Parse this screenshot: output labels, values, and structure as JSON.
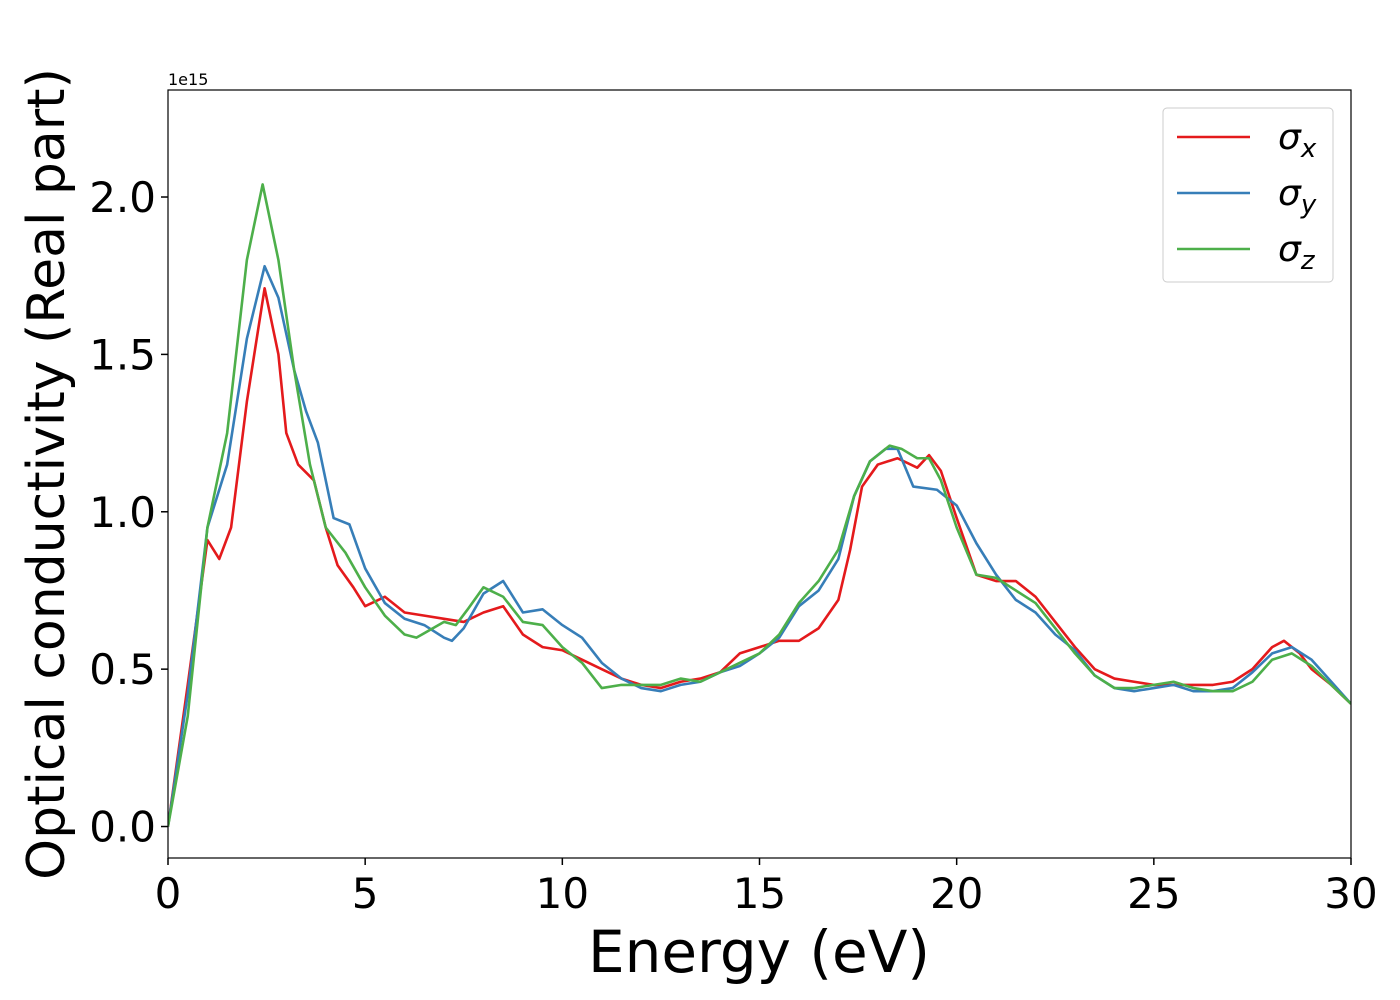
{
  "chart_data": {
    "type": "line",
    "xlabel": "Energy (eV)",
    "ylabel": "Optical conductivity (Real part)",
    "y_offset_text": "1e15",
    "xlim": [
      0,
      30
    ],
    "xticks": [
      0,
      5,
      10,
      15,
      20,
      25,
      30
    ],
    "ylim": [
      -0.1,
      2.34
    ],
    "yticks": [
      {
        "value": 0,
        "label": "0.0"
      },
      0.5,
      {
        "value": 1,
        "label": "1.0"
      },
      1.5,
      {
        "value": 2,
        "label": "2.0"
      }
    ],
    "grid": false,
    "legend": "upper right",
    "series": [
      {
        "name": "σx",
        "color": "#e41a1c",
        "x": [
          0,
          0.5,
          1.0,
          1.3,
          1.6,
          2.0,
          2.45,
          2.8,
          3.0,
          3.3,
          3.7,
          4.0,
          4.3,
          4.7,
          5.0,
          5.5,
          6.0,
          6.5,
          7.0,
          7.5,
          8.0,
          8.5,
          9.0,
          9.5,
          10,
          10.5,
          11,
          11.5,
          12,
          12.5,
          13,
          13.5,
          14,
          14.5,
          15,
          15.5,
          16,
          16.5,
          17,
          17.3,
          17.6,
          18,
          18.5,
          19,
          19.3,
          19.6,
          20,
          20.5,
          21,
          21.5,
          22,
          22.5,
          23,
          23.5,
          24,
          24.5,
          25,
          25.5,
          26,
          26.5,
          27,
          27.5,
          28,
          28.3,
          28.7,
          29,
          29.5,
          30
        ],
        "values": [
          0,
          0.45,
          0.91,
          0.85,
          0.95,
          1.35,
          1.71,
          1.5,
          1.25,
          1.15,
          1.1,
          0.95,
          0.83,
          0.76,
          0.7,
          0.73,
          0.68,
          0.67,
          0.66,
          0.65,
          0.68,
          0.7,
          0.61,
          0.57,
          0.56,
          0.53,
          0.5,
          0.47,
          0.45,
          0.44,
          0.46,
          0.47,
          0.49,
          0.55,
          0.57,
          0.59,
          0.59,
          0.63,
          0.72,
          0.88,
          1.08,
          1.15,
          1.17,
          1.14,
          1.18,
          1.13,
          0.98,
          0.8,
          0.78,
          0.78,
          0.73,
          0.65,
          0.57,
          0.5,
          0.47,
          0.46,
          0.45,
          0.45,
          0.45,
          0.45,
          0.46,
          0.5,
          0.57,
          0.59,
          0.55,
          0.5,
          0.45,
          0.39
        ]
      },
      {
        "name": "σy",
        "color": "#377eb8",
        "x": [
          0,
          0.5,
          1.0,
          1.5,
          2.0,
          2.45,
          2.8,
          3.2,
          3.5,
          3.8,
          4.2,
          4.6,
          5.0,
          5.5,
          6.0,
          6.5,
          7.0,
          7.2,
          7.5,
          8.0,
          8.5,
          9.0,
          9.5,
          10,
          10.5,
          11,
          11.5,
          12,
          12.5,
          13,
          13.5,
          14,
          14.5,
          15,
          15.5,
          16,
          16.5,
          17,
          17.4,
          17.8,
          18.2,
          18.5,
          18.9,
          19.5,
          20,
          20.5,
          21,
          21.5,
          22,
          22.5,
          23,
          23.5,
          24,
          24.5,
          25,
          25.5,
          26,
          26.5,
          27,
          27.5,
          28,
          28.5,
          29,
          29.5,
          30
        ],
        "values": [
          0,
          0.42,
          0.95,
          1.15,
          1.55,
          1.78,
          1.68,
          1.45,
          1.32,
          1.22,
          0.98,
          0.96,
          0.82,
          0.71,
          0.66,
          0.64,
          0.6,
          0.59,
          0.63,
          0.74,
          0.78,
          0.68,
          0.69,
          0.64,
          0.6,
          0.52,
          0.47,
          0.44,
          0.43,
          0.45,
          0.46,
          0.49,
          0.51,
          0.55,
          0.6,
          0.7,
          0.75,
          0.85,
          1.05,
          1.16,
          1.2,
          1.2,
          1.08,
          1.07,
          1.02,
          0.9,
          0.8,
          0.72,
          0.68,
          0.61,
          0.56,
          0.48,
          0.44,
          0.43,
          0.44,
          0.45,
          0.43,
          0.43,
          0.44,
          0.49,
          0.55,
          0.57,
          0.53,
          0.46,
          0.39
        ]
      },
      {
        "name": "σz",
        "color": "#4daf4a",
        "x": [
          0,
          0.5,
          1.0,
          1.5,
          2.0,
          2.4,
          2.8,
          3.2,
          3.6,
          4.0,
          4.5,
          5.0,
          5.5,
          6.0,
          6.3,
          7.0,
          7.3,
          7.6,
          8.0,
          8.5,
          9.0,
          9.5,
          10,
          10.5,
          11,
          11.5,
          12,
          12.5,
          13,
          13.5,
          14,
          14.5,
          15,
          15.5,
          16,
          16.5,
          17,
          17.4,
          17.8,
          18.3,
          18.6,
          19.0,
          19.3,
          19.6,
          20,
          20.5,
          21,
          21.5,
          22,
          22.5,
          23,
          23.5,
          24,
          24.5,
          25,
          25.5,
          26,
          26.5,
          27,
          27.5,
          28,
          28.5,
          29,
          29.5,
          30
        ],
        "values": [
          0,
          0.35,
          0.95,
          1.25,
          1.8,
          2.04,
          1.8,
          1.45,
          1.15,
          0.95,
          0.87,
          0.76,
          0.67,
          0.61,
          0.6,
          0.65,
          0.64,
          0.69,
          0.76,
          0.73,
          0.65,
          0.64,
          0.57,
          0.52,
          0.44,
          0.45,
          0.45,
          0.45,
          0.47,
          0.46,
          0.49,
          0.52,
          0.55,
          0.61,
          0.71,
          0.78,
          0.88,
          1.05,
          1.16,
          1.21,
          1.2,
          1.17,
          1.17,
          1.1,
          0.95,
          0.8,
          0.79,
          0.75,
          0.71,
          0.63,
          0.55,
          0.48,
          0.44,
          0.44,
          0.45,
          0.46,
          0.44,
          0.43,
          0.43,
          0.46,
          0.53,
          0.55,
          0.51,
          0.45,
          0.39
        ]
      }
    ]
  }
}
